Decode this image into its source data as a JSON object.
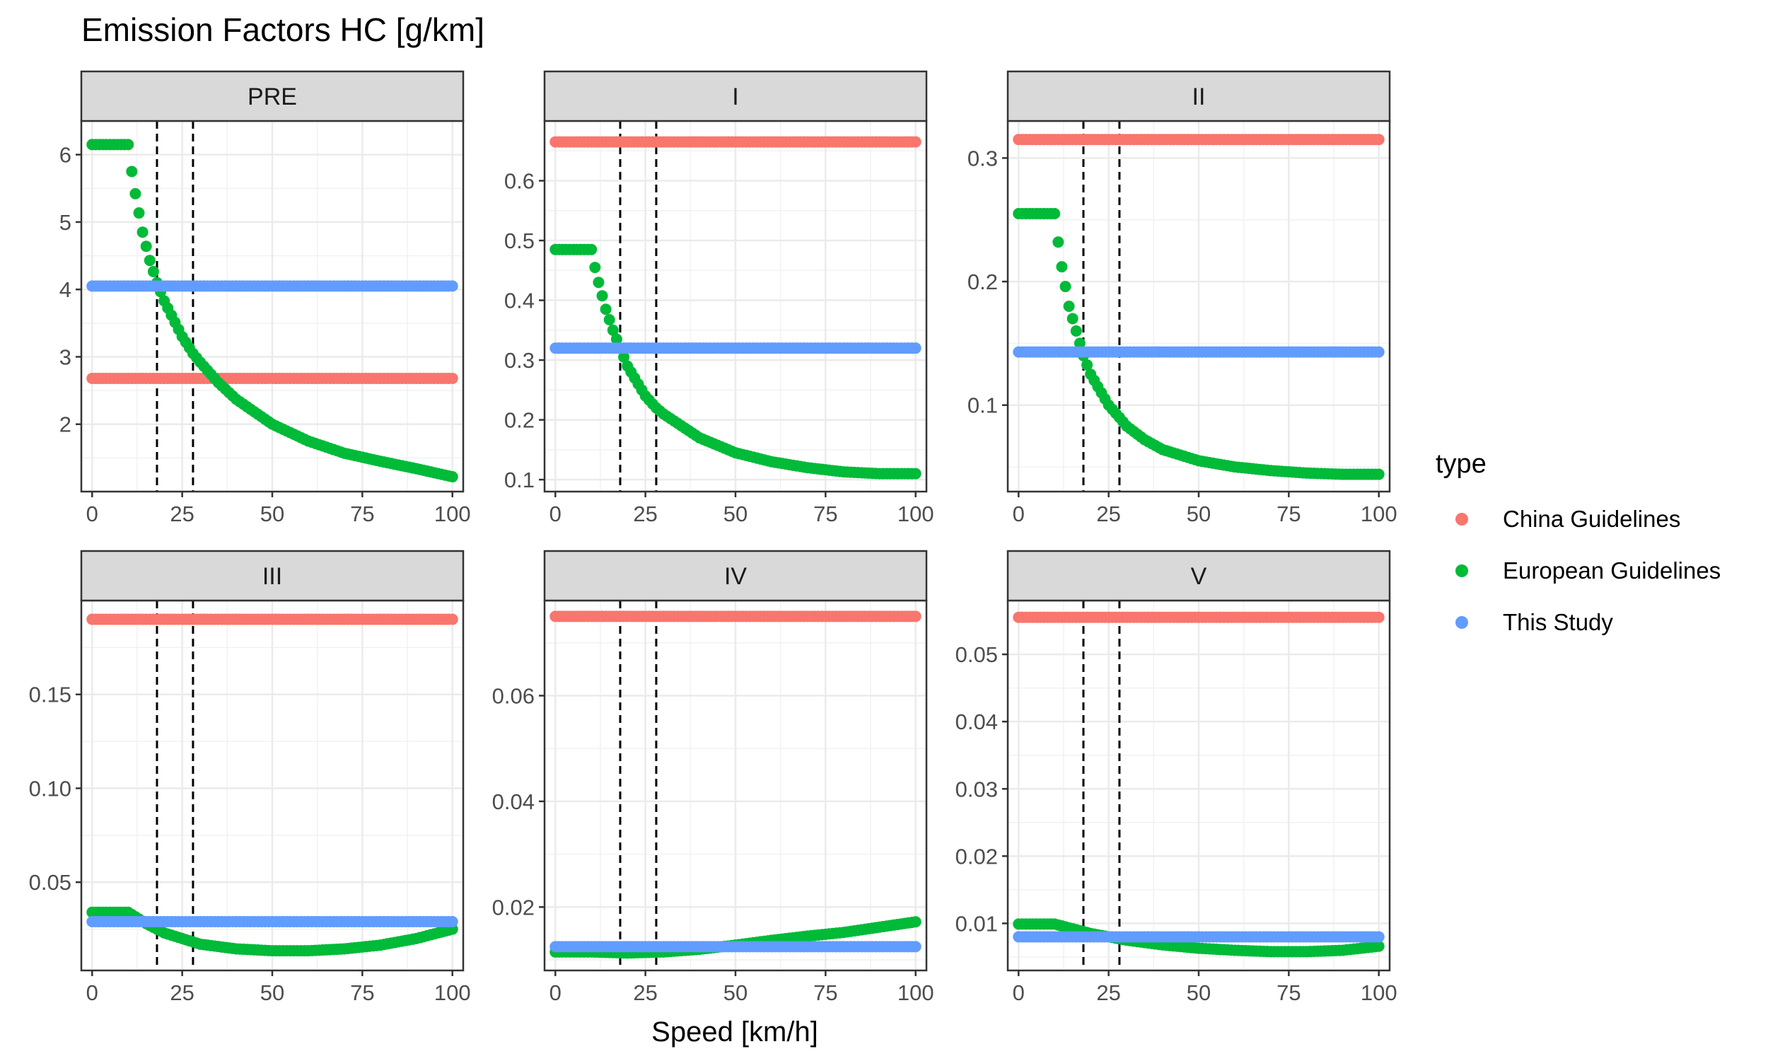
{
  "chart_data": {
    "type": "scatter",
    "title": "Emission Factors HC [g/km]",
    "xlabel": "Speed [km/h]",
    "ylabel": "",
    "grid": true,
    "legend": {
      "title": "type",
      "placement": "right",
      "entries": [
        {
          "label": "China Guidelines",
          "color": "#F8766D"
        },
        {
          "label": "European Guidelines",
          "color": "#00BA38"
        },
        {
          "label": "This Study",
          "color": "#619CFF"
        }
      ]
    },
    "reference_lines_x": [
      18,
      28
    ],
    "xlim": [
      -3,
      103
    ],
    "x_ticks": [
      0,
      25,
      50,
      75,
      100
    ],
    "panels": [
      {
        "name": "PRE",
        "ylim": [
          1.0,
          6.5
        ],
        "y_ticks": [
          2,
          3,
          4,
          5,
          6
        ],
        "y_tick_labels": [
          "2",
          "3",
          "4",
          "5",
          "6"
        ],
        "series": [
          {
            "name": "China Guidelines",
            "values": [
              [
                0,
                2.68
              ],
              [
                100,
                2.68
              ]
            ]
          },
          {
            "name": "European Guidelines",
            "values": [
              [
                0,
                6.15
              ],
              [
                10,
                6.15
              ],
              [
                11,
                5.75
              ],
              [
                12,
                5.42
              ],
              [
                14,
                4.85
              ],
              [
                16,
                4.43
              ],
              [
                18,
                4.1
              ],
              [
                20,
                3.83
              ],
              [
                25,
                3.3
              ],
              [
                28,
                3.05
              ],
              [
                30,
                2.92
              ],
              [
                35,
                2.62
              ],
              [
                40,
                2.37
              ],
              [
                50,
                2.0
              ],
              [
                60,
                1.75
              ],
              [
                70,
                1.57
              ],
              [
                80,
                1.45
              ],
              [
                90,
                1.34
              ],
              [
                100,
                1.22
              ]
            ]
          },
          {
            "name": "This Study",
            "values": [
              [
                0,
                4.05
              ],
              [
                100,
                4.05
              ]
            ]
          }
        ]
      },
      {
        "name": "I",
        "ylim": [
          0.08,
          0.7
        ],
        "y_ticks": [
          0.1,
          0.2,
          0.3,
          0.4,
          0.5,
          0.6
        ],
        "y_tick_labels": [
          "0.1",
          "0.2",
          "0.3",
          "0.4",
          "0.5",
          "0.6"
        ],
        "series": [
          {
            "name": "China Guidelines",
            "values": [
              [
                0,
                0.665
              ],
              [
                100,
                0.665
              ]
            ]
          },
          {
            "name": "European Guidelines",
            "values": [
              [
                0,
                0.485
              ],
              [
                10,
                0.485
              ],
              [
                11,
                0.455
              ],
              [
                12,
                0.43
              ],
              [
                14,
                0.385
              ],
              [
                16,
                0.35
              ],
              [
                18,
                0.32
              ],
              [
                20,
                0.29
              ],
              [
                25,
                0.24
              ],
              [
                28,
                0.22
              ],
              [
                30,
                0.21
              ],
              [
                35,
                0.19
              ],
              [
                40,
                0.17
              ],
              [
                50,
                0.145
              ],
              [
                60,
                0.13
              ],
              [
                70,
                0.12
              ],
              [
                80,
                0.113
              ],
              [
                90,
                0.11
              ],
              [
                100,
                0.11
              ]
            ]
          },
          {
            "name": "This Study",
            "values": [
              [
                0,
                0.32
              ],
              [
                100,
                0.32
              ]
            ]
          }
        ]
      },
      {
        "name": "II",
        "ylim": [
          0.03,
          0.33
        ],
        "y_ticks": [
          0.1,
          0.2,
          0.3
        ],
        "y_tick_labels": [
          "0.1",
          "0.2",
          "0.3"
        ],
        "series": [
          {
            "name": "China Guidelines",
            "values": [
              [
                0,
                0.315
              ],
              [
                100,
                0.315
              ]
            ]
          },
          {
            "name": "European Guidelines",
            "values": [
              [
                0,
                0.255
              ],
              [
                10,
                0.255
              ],
              [
                11,
                0.232
              ],
              [
                12,
                0.212
              ],
              [
                14,
                0.18
              ],
              [
                16,
                0.16
              ],
              [
                18,
                0.14
              ],
              [
                20,
                0.125
              ],
              [
                25,
                0.1
              ],
              [
                28,
                0.09
              ],
              [
                30,
                0.083
              ],
              [
                35,
                0.072
              ],
              [
                40,
                0.064
              ],
              [
                50,
                0.055
              ],
              [
                60,
                0.05
              ],
              [
                70,
                0.047
              ],
              [
                80,
                0.045
              ],
              [
                90,
                0.044
              ],
              [
                100,
                0.044
              ]
            ]
          },
          {
            "name": "This Study",
            "values": [
              [
                0,
                0.143
              ],
              [
                100,
                0.143
              ]
            ]
          }
        ]
      },
      {
        "name": "III",
        "ylim": [
          0.003,
          0.2
        ],
        "y_ticks": [
          0.05,
          0.1,
          0.15
        ],
        "y_tick_labels": [
          "0.05",
          "0.10",
          "0.15"
        ],
        "series": [
          {
            "name": "China Guidelines",
            "values": [
              [
                0,
                0.19
              ],
              [
                100,
                0.19
              ]
            ]
          },
          {
            "name": "European Guidelines",
            "values": [
              [
                0,
                0.034
              ],
              [
                10,
                0.034
              ],
              [
                15,
                0.028
              ],
              [
                20,
                0.023
              ],
              [
                25,
                0.02
              ],
              [
                30,
                0.017
              ],
              [
                40,
                0.0145
              ],
              [
                50,
                0.0135
              ],
              [
                60,
                0.0135
              ],
              [
                70,
                0.0145
              ],
              [
                80,
                0.0165
              ],
              [
                90,
                0.02
              ],
              [
                100,
                0.025
              ]
            ]
          },
          {
            "name": "This Study",
            "values": [
              [
                0,
                0.029
              ],
              [
                100,
                0.029
              ]
            ]
          }
        ]
      },
      {
        "name": "IV",
        "ylim": [
          0.008,
          0.078
        ],
        "y_ticks": [
          0.02,
          0.04,
          0.06
        ],
        "y_tick_labels": [
          "0.02",
          "0.04",
          "0.06"
        ],
        "series": [
          {
            "name": "China Guidelines",
            "values": [
              [
                0,
                0.075
              ],
              [
                100,
                0.075
              ]
            ]
          },
          {
            "name": "European Guidelines",
            "values": [
              [
                0,
                0.0115
              ],
              [
                10,
                0.0115
              ],
              [
                20,
                0.0113
              ],
              [
                30,
                0.0115
              ],
              [
                40,
                0.012
              ],
              [
                50,
                0.0128
              ],
              [
                60,
                0.0137
              ],
              [
                70,
                0.0145
              ],
              [
                80,
                0.0152
              ],
              [
                90,
                0.0162
              ],
              [
                100,
                0.0172
              ]
            ]
          },
          {
            "name": "This Study",
            "values": [
              [
                0,
                0.0125
              ],
              [
                100,
                0.0125
              ]
            ]
          }
        ]
      },
      {
        "name": "V",
        "ylim": [
          0.003,
          0.058
        ],
        "y_ticks": [
          0.01,
          0.02,
          0.03,
          0.04,
          0.05
        ],
        "y_tick_labels": [
          "0.01",
          "0.02",
          "0.03",
          "0.04",
          "0.05"
        ],
        "series": [
          {
            "name": "China Guidelines",
            "values": [
              [
                0,
                0.0555
              ],
              [
                100,
                0.0555
              ]
            ]
          },
          {
            "name": "European Guidelines",
            "values": [
              [
                0,
                0.0099
              ],
              [
                10,
                0.0099
              ],
              [
                15,
                0.0092
              ],
              [
                20,
                0.0085
              ],
              [
                30,
                0.0075
              ],
              [
                40,
                0.0068
              ],
              [
                50,
                0.0063
              ],
              [
                60,
                0.006
              ],
              [
                70,
                0.0058
              ],
              [
                80,
                0.0058
              ],
              [
                90,
                0.006
              ],
              [
                100,
                0.0066
              ]
            ]
          },
          {
            "name": "This Study",
            "values": [
              [
                0,
                0.008
              ],
              [
                100,
                0.008
              ]
            ]
          }
        ]
      }
    ]
  }
}
